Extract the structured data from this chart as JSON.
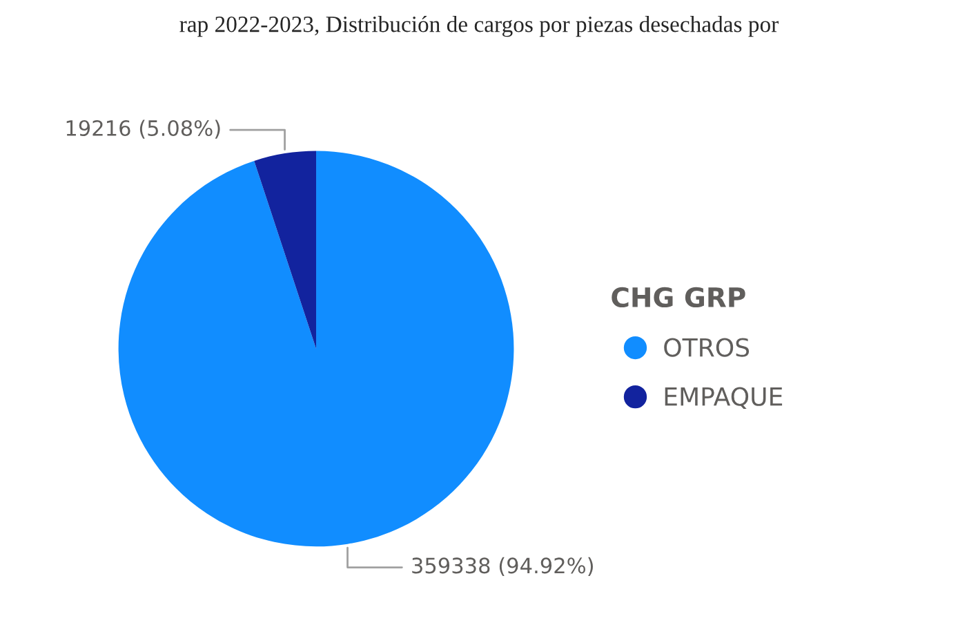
{
  "chart_data": {
    "type": "pie",
    "title": "rap 2022-2023, Distribución de cargos por piezas desechadas por",
    "categories": [
      "OTROS",
      "EMPAQUE"
    ],
    "values": [
      359338,
      19216
    ],
    "colors": [
      "#118dff",
      "#12239e"
    ],
    "value_labels": [
      "359338 (94.92%)",
      "19216 (5.08%)"
    ],
    "legend_title": "CHG GRP",
    "legend": "right"
  }
}
